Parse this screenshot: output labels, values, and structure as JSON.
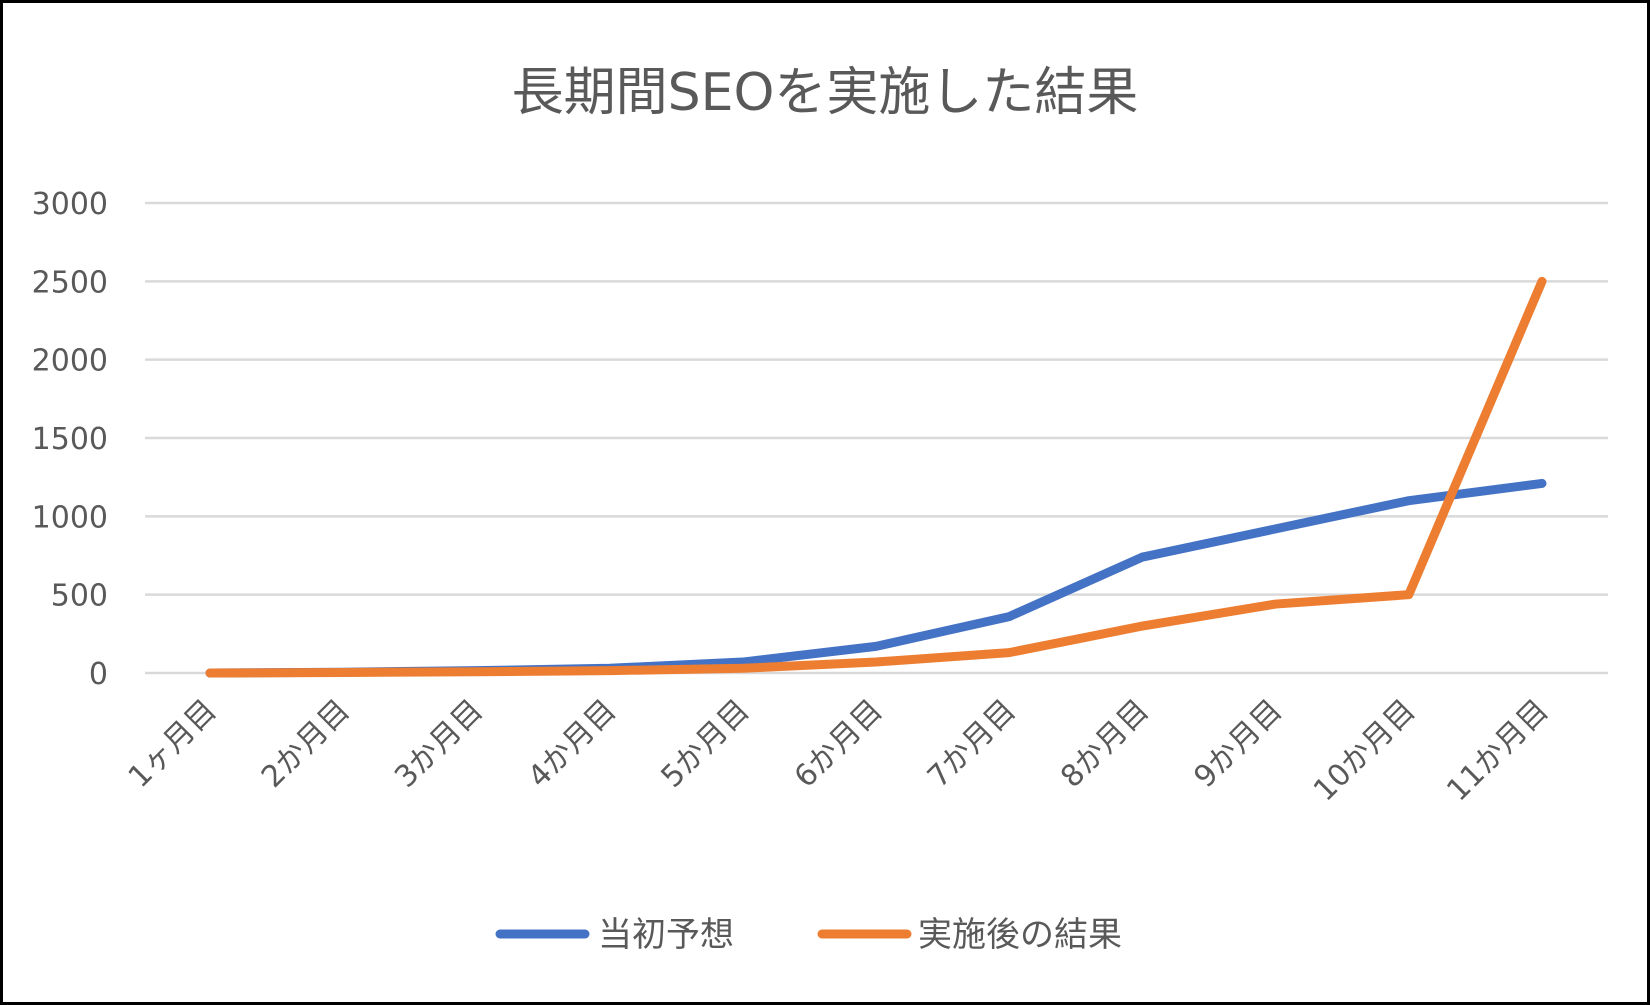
{
  "chart_data": {
    "type": "line",
    "title": "長期間SEOを実施した結果",
    "categories": [
      "1ヶ月目",
      "2か月目",
      "3か月目",
      "4か月目",
      "5か月目",
      "6か月目",
      "7か月目",
      "8か月目",
      "9か月目",
      "10か月目",
      "11か月目"
    ],
    "series": [
      {
        "name": "当初予想",
        "color": "#4472C4",
        "values": [
          0,
          5,
          15,
          30,
          70,
          170,
          360,
          740,
          920,
          1100,
          1210
        ]
      },
      {
        "name": "実施後の結果",
        "color": "#ED7D31",
        "values": [
          0,
          3,
          8,
          15,
          30,
          70,
          130,
          300,
          440,
          500,
          2500
        ]
      }
    ],
    "y_ticks": [
      "0",
      "500",
      "1000",
      "1500",
      "2000",
      "2500",
      "3000"
    ],
    "ylim": [
      0,
      3000
    ],
    "grid": true,
    "legend_position": "bottom",
    "gridline_color": "#D9D9D9",
    "text_color": "#595959"
  }
}
